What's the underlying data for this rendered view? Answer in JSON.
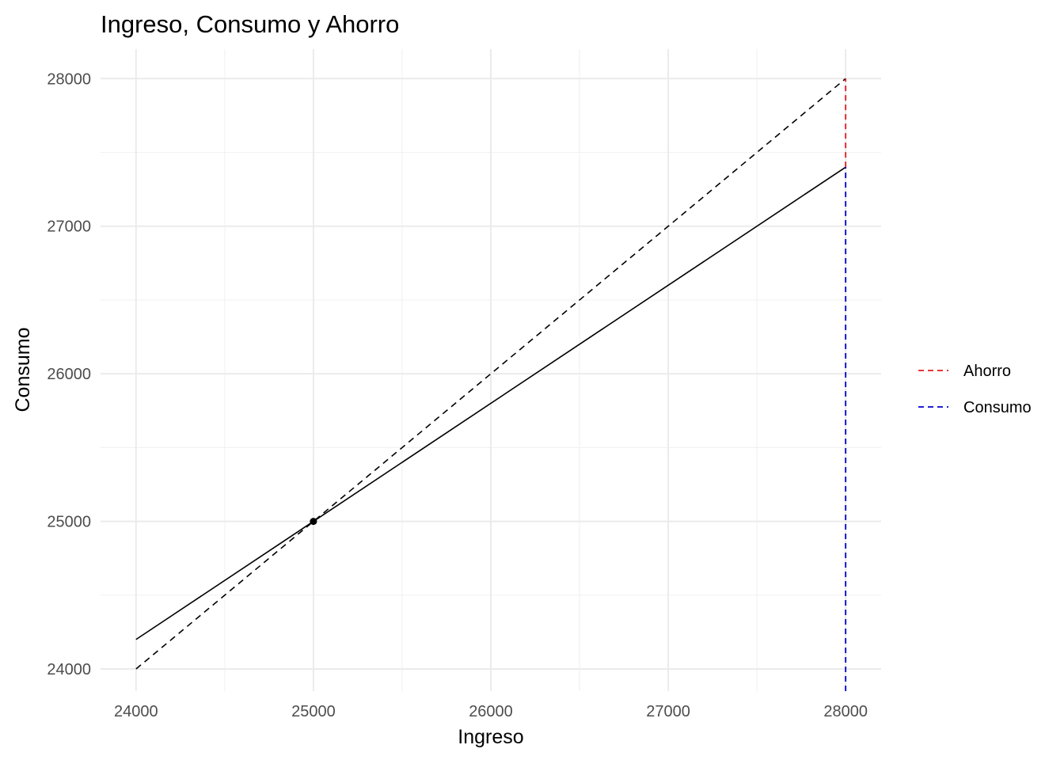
{
  "chart_data": {
    "type": "line",
    "title": "Ingreso, Consumo y Ahorro",
    "xlabel": "Ingreso",
    "ylabel": "Consumo",
    "xlim": [
      23800,
      28200
    ],
    "ylim": [
      23850,
      28200
    ],
    "x_ticks": [
      24000,
      25000,
      26000,
      27000,
      28000
    ],
    "y_ticks": [
      24000,
      25000,
      26000,
      27000,
      28000
    ],
    "grid": true,
    "legend_position": "right",
    "series": [
      {
        "style": "solid",
        "color": "#000000",
        "points": [
          [
            24000,
            24200
          ],
          [
            28000,
            27400
          ]
        ]
      },
      {
        "style": "dashed",
        "color": "#000000",
        "points": [
          [
            24000,
            24000
          ],
          [
            28000,
            28000
          ]
        ]
      }
    ],
    "point": {
      "x": 25000,
      "y": 25000,
      "color": "#000000"
    },
    "segments": [
      {
        "name": "Ahorro",
        "color": "#e41a1c",
        "style": "dashed",
        "x": 28000,
        "y_from": 27400,
        "y_to": 28000
      },
      {
        "name": "Consumo",
        "color": "#0000cd",
        "style": "dashed",
        "x": 28000,
        "y_from": 23850,
        "y_to": 27400
      }
    ],
    "legend": [
      {
        "label": "Ahorro",
        "color": "#e41a1c",
        "style": "dashed"
      },
      {
        "label": "Consumo",
        "color": "#0000cd",
        "style": "dashed"
      }
    ]
  }
}
